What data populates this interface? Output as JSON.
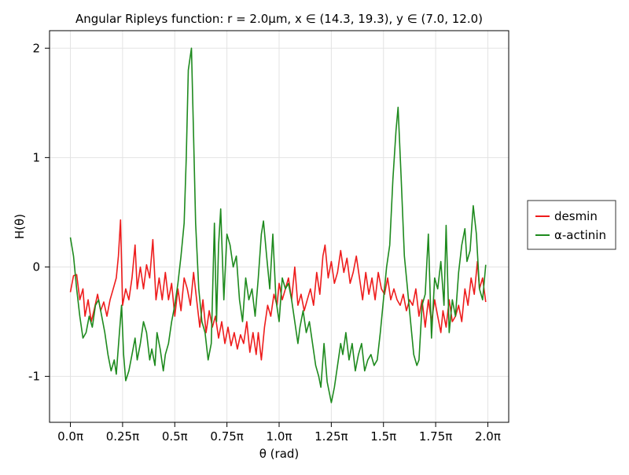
{
  "chart_data": {
    "type": "line",
    "title": "Angular Ripleys function: r = 2.0µm, x ∈ (14.3, 19.3), y ∈ (7.0, 12.0)",
    "xlabel": "θ (rad)",
    "ylabel": "H(θ)",
    "xlim": [
      -0.1,
      2.1
    ],
    "ylim": [
      -1.42,
      2.16
    ],
    "x_ticks": [
      0,
      0.25,
      0.5,
      0.75,
      1.0,
      1.25,
      1.5,
      1.75,
      2.0
    ],
    "x_tick_labels": [
      "0.0π",
      "0.25π",
      "0.5π",
      "0.75π",
      "1.0π",
      "1.25π",
      "1.5π",
      "1.75π",
      "2.0π"
    ],
    "y_ticks": [
      -1,
      0,
      1,
      2
    ],
    "y_tick_labels": [
      "-1",
      "0",
      "1",
      "2"
    ],
    "x_unit": "π rad",
    "grid": true,
    "legend_position": "right",
    "series": [
      {
        "name": "desmin",
        "color": "#ee1c1c",
        "points": [
          [
            0.0,
            -0.23
          ],
          [
            0.015,
            -0.08
          ],
          [
            0.03,
            -0.07
          ],
          [
            0.045,
            -0.3
          ],
          [
            0.06,
            -0.2
          ],
          [
            0.07,
            -0.45
          ],
          [
            0.085,
            -0.3
          ],
          [
            0.1,
            -0.5
          ],
          [
            0.115,
            -0.38
          ],
          [
            0.13,
            -0.25
          ],
          [
            0.145,
            -0.4
          ],
          [
            0.16,
            -0.32
          ],
          [
            0.175,
            -0.45
          ],
          [
            0.19,
            -0.3
          ],
          [
            0.205,
            -0.2
          ],
          [
            0.22,
            -0.1
          ],
          [
            0.23,
            0.1
          ],
          [
            0.24,
            0.43
          ],
          [
            0.25,
            -0.35
          ],
          [
            0.265,
            -0.2
          ],
          [
            0.28,
            -0.3
          ],
          [
            0.295,
            -0.1
          ],
          [
            0.31,
            0.2
          ],
          [
            0.32,
            -0.2
          ],
          [
            0.335,
            0.0
          ],
          [
            0.35,
            -0.2
          ],
          [
            0.365,
            0.02
          ],
          [
            0.38,
            -0.1
          ],
          [
            0.395,
            0.25
          ],
          [
            0.41,
            -0.3
          ],
          [
            0.425,
            -0.1
          ],
          [
            0.44,
            -0.3
          ],
          [
            0.455,
            -0.05
          ],
          [
            0.47,
            -0.3
          ],
          [
            0.485,
            -0.15
          ],
          [
            0.5,
            -0.45
          ],
          [
            0.515,
            -0.2
          ],
          [
            0.53,
            -0.4
          ],
          [
            0.545,
            -0.1
          ],
          [
            0.56,
            -0.2
          ],
          [
            0.575,
            -0.35
          ],
          [
            0.59,
            -0.05
          ],
          [
            0.605,
            -0.3
          ],
          [
            0.62,
            -0.55
          ],
          [
            0.635,
            -0.3
          ],
          [
            0.65,
            -0.6
          ],
          [
            0.665,
            -0.4
          ],
          [
            0.68,
            -0.55
          ],
          [
            0.695,
            -0.45
          ],
          [
            0.71,
            -0.65
          ],
          [
            0.725,
            -0.5
          ],
          [
            0.74,
            -0.7
          ],
          [
            0.755,
            -0.55
          ],
          [
            0.77,
            -0.72
          ],
          [
            0.785,
            -0.6
          ],
          [
            0.8,
            -0.75
          ],
          [
            0.815,
            -0.62
          ],
          [
            0.83,
            -0.7
          ],
          [
            0.845,
            -0.5
          ],
          [
            0.86,
            -0.78
          ],
          [
            0.875,
            -0.6
          ],
          [
            0.89,
            -0.8
          ],
          [
            0.9,
            -0.6
          ],
          [
            0.915,
            -0.85
          ],
          [
            0.93,
            -0.55
          ],
          [
            0.945,
            -0.35
          ],
          [
            0.96,
            -0.45
          ],
          [
            0.975,
            -0.25
          ],
          [
            0.99,
            -0.35
          ],
          [
            1.0,
            -0.15
          ],
          [
            1.015,
            -0.3
          ],
          [
            1.03,
            -0.2
          ],
          [
            1.045,
            -0.1
          ],
          [
            1.06,
            -0.3
          ],
          [
            1.075,
            0.0
          ],
          [
            1.09,
            -0.35
          ],
          [
            1.105,
            -0.25
          ],
          [
            1.12,
            -0.4
          ],
          [
            1.135,
            -0.3
          ],
          [
            1.15,
            -0.2
          ],
          [
            1.165,
            -0.35
          ],
          [
            1.18,
            -0.05
          ],
          [
            1.195,
            -0.25
          ],
          [
            1.21,
            0.1
          ],
          [
            1.22,
            0.2
          ],
          [
            1.235,
            -0.1
          ],
          [
            1.25,
            0.05
          ],
          [
            1.265,
            -0.15
          ],
          [
            1.28,
            -0.05
          ],
          [
            1.295,
            0.15
          ],
          [
            1.31,
            -0.05
          ],
          [
            1.325,
            0.08
          ],
          [
            1.34,
            -0.15
          ],
          [
            1.355,
            -0.05
          ],
          [
            1.37,
            0.1
          ],
          [
            1.385,
            -0.1
          ],
          [
            1.4,
            -0.3
          ],
          [
            1.415,
            -0.05
          ],
          [
            1.43,
            -0.25
          ],
          [
            1.445,
            -0.1
          ],
          [
            1.46,
            -0.3
          ],
          [
            1.475,
            -0.05
          ],
          [
            1.49,
            -0.2
          ],
          [
            1.505,
            -0.25
          ],
          [
            1.52,
            -0.1
          ],
          [
            1.535,
            -0.3
          ],
          [
            1.55,
            -0.2
          ],
          [
            1.565,
            -0.3
          ],
          [
            1.58,
            -0.35
          ],
          [
            1.595,
            -0.25
          ],
          [
            1.61,
            -0.4
          ],
          [
            1.625,
            -0.3
          ],
          [
            1.64,
            -0.35
          ],
          [
            1.655,
            -0.2
          ],
          [
            1.67,
            -0.45
          ],
          [
            1.685,
            -0.3
          ],
          [
            1.7,
            -0.55
          ],
          [
            1.715,
            -0.3
          ],
          [
            1.73,
            -0.5
          ],
          [
            1.745,
            -0.3
          ],
          [
            1.76,
            -0.45
          ],
          [
            1.775,
            -0.6
          ],
          [
            1.785,
            -0.4
          ],
          [
            1.8,
            -0.55
          ],
          [
            1.815,
            -0.3
          ],
          [
            1.83,
            -0.5
          ],
          [
            1.845,
            -0.45
          ],
          [
            1.86,
            -0.35
          ],
          [
            1.875,
            -0.5
          ],
          [
            1.89,
            -0.2
          ],
          [
            1.905,
            -0.35
          ],
          [
            1.92,
            -0.1
          ],
          [
            1.935,
            -0.25
          ],
          [
            1.95,
            0.05
          ],
          [
            1.96,
            -0.2
          ],
          [
            1.975,
            -0.1
          ],
          [
            1.99,
            -0.32
          ]
        ]
      },
      {
        "name": "α-actinin",
        "color": "#1e8a1e",
        "points": [
          [
            0.0,
            0.27
          ],
          [
            0.015,
            0.1
          ],
          [
            0.03,
            -0.2
          ],
          [
            0.045,
            -0.45
          ],
          [
            0.06,
            -0.65
          ],
          [
            0.075,
            -0.6
          ],
          [
            0.09,
            -0.45
          ],
          [
            0.105,
            -0.55
          ],
          [
            0.12,
            -0.35
          ],
          [
            0.135,
            -0.3
          ],
          [
            0.15,
            -0.45
          ],
          [
            0.165,
            -0.6
          ],
          [
            0.18,
            -0.8
          ],
          [
            0.195,
            -0.95
          ],
          [
            0.21,
            -0.85
          ],
          [
            0.22,
            -0.98
          ],
          [
            0.235,
            -0.6
          ],
          [
            0.245,
            -0.35
          ],
          [
            0.255,
            -0.8
          ],
          [
            0.265,
            -1.04
          ],
          [
            0.28,
            -0.95
          ],
          [
            0.295,
            -0.8
          ],
          [
            0.31,
            -0.65
          ],
          [
            0.32,
            -0.85
          ],
          [
            0.335,
            -0.7
          ],
          [
            0.35,
            -0.5
          ],
          [
            0.365,
            -0.6
          ],
          [
            0.38,
            -0.85
          ],
          [
            0.39,
            -0.75
          ],
          [
            0.405,
            -0.9
          ],
          [
            0.415,
            -0.6
          ],
          [
            0.43,
            -0.75
          ],
          [
            0.445,
            -0.95
          ],
          [
            0.455,
            -0.8
          ],
          [
            0.47,
            -0.7
          ],
          [
            0.485,
            -0.5
          ],
          [
            0.5,
            -0.35
          ],
          [
            0.515,
            -0.15
          ],
          [
            0.53,
            0.1
          ],
          [
            0.545,
            0.4
          ],
          [
            0.555,
            1.0
          ],
          [
            0.565,
            1.8
          ],
          [
            0.58,
            2.0
          ],
          [
            0.59,
            1.2
          ],
          [
            0.6,
            0.4
          ],
          [
            0.615,
            -0.2
          ],
          [
            0.63,
            -0.5
          ],
          [
            0.645,
            -0.6
          ],
          [
            0.66,
            -0.85
          ],
          [
            0.675,
            -0.7
          ],
          [
            0.69,
            0.4
          ],
          [
            0.7,
            -0.5
          ],
          [
            0.71,
            0.2
          ],
          [
            0.72,
            0.53
          ],
          [
            0.735,
            -0.3
          ],
          [
            0.75,
            0.3
          ],
          [
            0.765,
            0.2
          ],
          [
            0.78,
            0.0
          ],
          [
            0.795,
            0.1
          ],
          [
            0.81,
            -0.3
          ],
          [
            0.825,
            -0.5
          ],
          [
            0.84,
            -0.1
          ],
          [
            0.855,
            -0.3
          ],
          [
            0.87,
            -0.2
          ],
          [
            0.885,
            -0.45
          ],
          [
            0.9,
            -0.1
          ],
          [
            0.915,
            0.3
          ],
          [
            0.925,
            0.42
          ],
          [
            0.94,
            0.1
          ],
          [
            0.955,
            -0.2
          ],
          [
            0.97,
            0.3
          ],
          [
            0.985,
            -0.3
          ],
          [
            1.0,
            -0.5
          ],
          [
            1.015,
            -0.1
          ],
          [
            1.03,
            -0.2
          ],
          [
            1.045,
            -0.15
          ],
          [
            1.06,
            -0.3
          ],
          [
            1.075,
            -0.5
          ],
          [
            1.09,
            -0.7
          ],
          [
            1.1,
            -0.55
          ],
          [
            1.115,
            -0.4
          ],
          [
            1.13,
            -0.6
          ],
          [
            1.145,
            -0.5
          ],
          [
            1.16,
            -0.7
          ],
          [
            1.175,
            -0.9
          ],
          [
            1.19,
            -1.0
          ],
          [
            1.2,
            -1.1
          ],
          [
            1.215,
            -0.7
          ],
          [
            1.23,
            -1.05
          ],
          [
            1.25,
            -1.24
          ],
          [
            1.265,
            -1.1
          ],
          [
            1.28,
            -0.9
          ],
          [
            1.295,
            -0.7
          ],
          [
            1.305,
            -0.8
          ],
          [
            1.32,
            -0.6
          ],
          [
            1.335,
            -0.85
          ],
          [
            1.35,
            -0.7
          ],
          [
            1.365,
            -0.95
          ],
          [
            1.38,
            -0.8
          ],
          [
            1.395,
            -0.7
          ],
          [
            1.41,
            -0.95
          ],
          [
            1.425,
            -0.85
          ],
          [
            1.44,
            -0.8
          ],
          [
            1.455,
            -0.9
          ],
          [
            1.47,
            -0.85
          ],
          [
            1.485,
            -0.6
          ],
          [
            1.5,
            -0.3
          ],
          [
            1.515,
            0.0
          ],
          [
            1.53,
            0.2
          ],
          [
            1.545,
            0.8
          ],
          [
            1.56,
            1.25
          ],
          [
            1.57,
            1.46
          ],
          [
            1.585,
            0.8
          ],
          [
            1.6,
            0.1
          ],
          [
            1.615,
            -0.2
          ],
          [
            1.63,
            -0.5
          ],
          [
            1.645,
            -0.8
          ],
          [
            1.66,
            -0.9
          ],
          [
            1.67,
            -0.85
          ],
          [
            1.685,
            -0.35
          ],
          [
            1.7,
            -0.25
          ],
          [
            1.715,
            0.3
          ],
          [
            1.73,
            -0.65
          ],
          [
            1.745,
            -0.1
          ],
          [
            1.76,
            -0.2
          ],
          [
            1.775,
            0.05
          ],
          [
            1.79,
            -0.35
          ],
          [
            1.8,
            0.38
          ],
          [
            1.815,
            -0.6
          ],
          [
            1.83,
            -0.3
          ],
          [
            1.845,
            -0.45
          ],
          [
            1.86,
            -0.05
          ],
          [
            1.875,
            0.2
          ],
          [
            1.89,
            0.35
          ],
          [
            1.9,
            0.05
          ],
          [
            1.915,
            0.15
          ],
          [
            1.93,
            0.56
          ],
          [
            1.945,
            0.3
          ],
          [
            1.96,
            -0.2
          ],
          [
            1.975,
            -0.3
          ],
          [
            1.99,
            0.02
          ]
        ]
      }
    ]
  }
}
